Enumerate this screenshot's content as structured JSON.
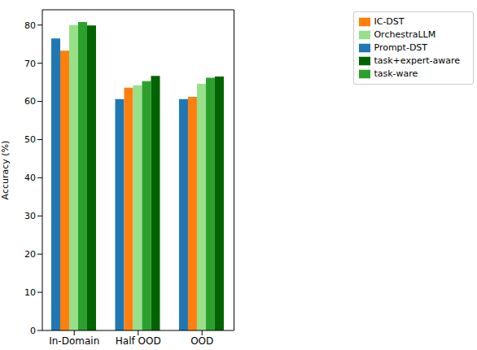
{
  "chart_data": {
    "type": "bar",
    "y_label": "Accuracy (%)",
    "categories": [
      "In-Domain",
      "Half OOD",
      "OOD"
    ],
    "series": [
      {
        "name": "Prompt-DST",
        "color": "#1f77b4",
        "values": [
          76.5,
          60.6,
          60.6
        ]
      },
      {
        "name": "IC-DST",
        "color": "#ff7f0e",
        "values": [
          73.3,
          63.6,
          61.2
        ]
      },
      {
        "name": "OrchestraLLM",
        "color": "#98df8a",
        "values": [
          80.0,
          64.2,
          64.6
        ]
      },
      {
        "name": "task-ware",
        "color": "#2ca02c",
        "values": [
          80.8,
          65.3,
          66.2
        ]
      },
      {
        "name": "task+expert-aware",
        "color": "#006400",
        "values": [
          79.9,
          66.7,
          66.5
        ]
      }
    ],
    "ylim": [
      0,
      84
    ],
    "yticks": [
      0,
      10,
      20,
      30,
      40,
      50,
      60,
      70,
      80
    ],
    "grid": false,
    "legend": "right"
  }
}
